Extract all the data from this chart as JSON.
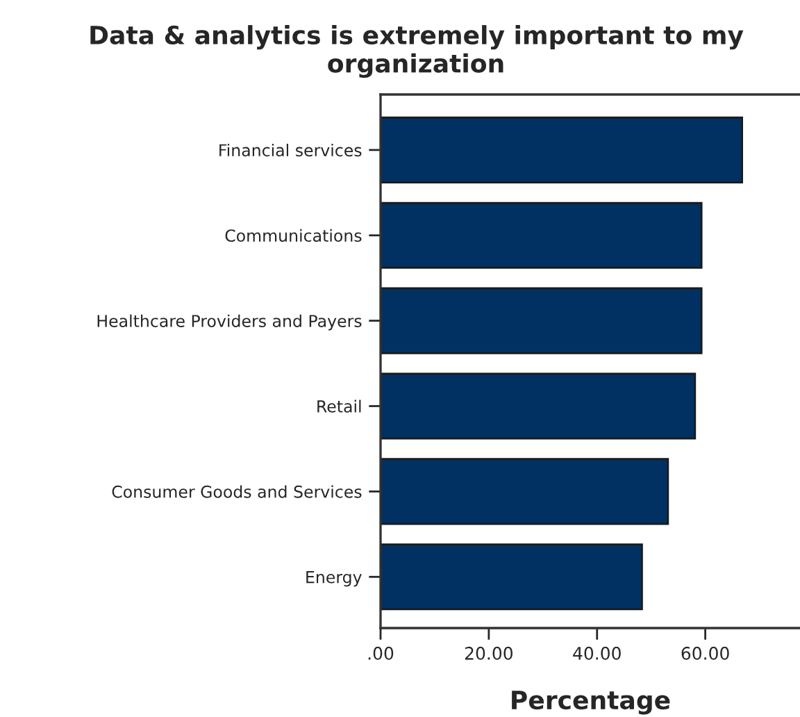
{
  "chart_data": {
    "type": "bar",
    "orientation": "horizontal",
    "title": "Data & analytics is extremely important to my organization",
    "xlabel": "Percentage",
    "categories": [
      "Financial services",
      "Communications",
      "Healthcare Providers and Payers",
      "Retail",
      "Consumer Goods and Services",
      "Energy"
    ],
    "values": [
      66.8,
      59.3,
      59.3,
      58.1,
      53.1,
      48.3
    ],
    "color": "#003162",
    "xlim": [
      0,
      77.5
    ],
    "xticks": [
      {
        "value": 0,
        "label": ".00"
      },
      {
        "value": 20,
        "label": "20.00"
      },
      {
        "value": 40,
        "label": "40.00"
      },
      {
        "value": 60,
        "label": "60.00"
      }
    ],
    "grid": false
  }
}
